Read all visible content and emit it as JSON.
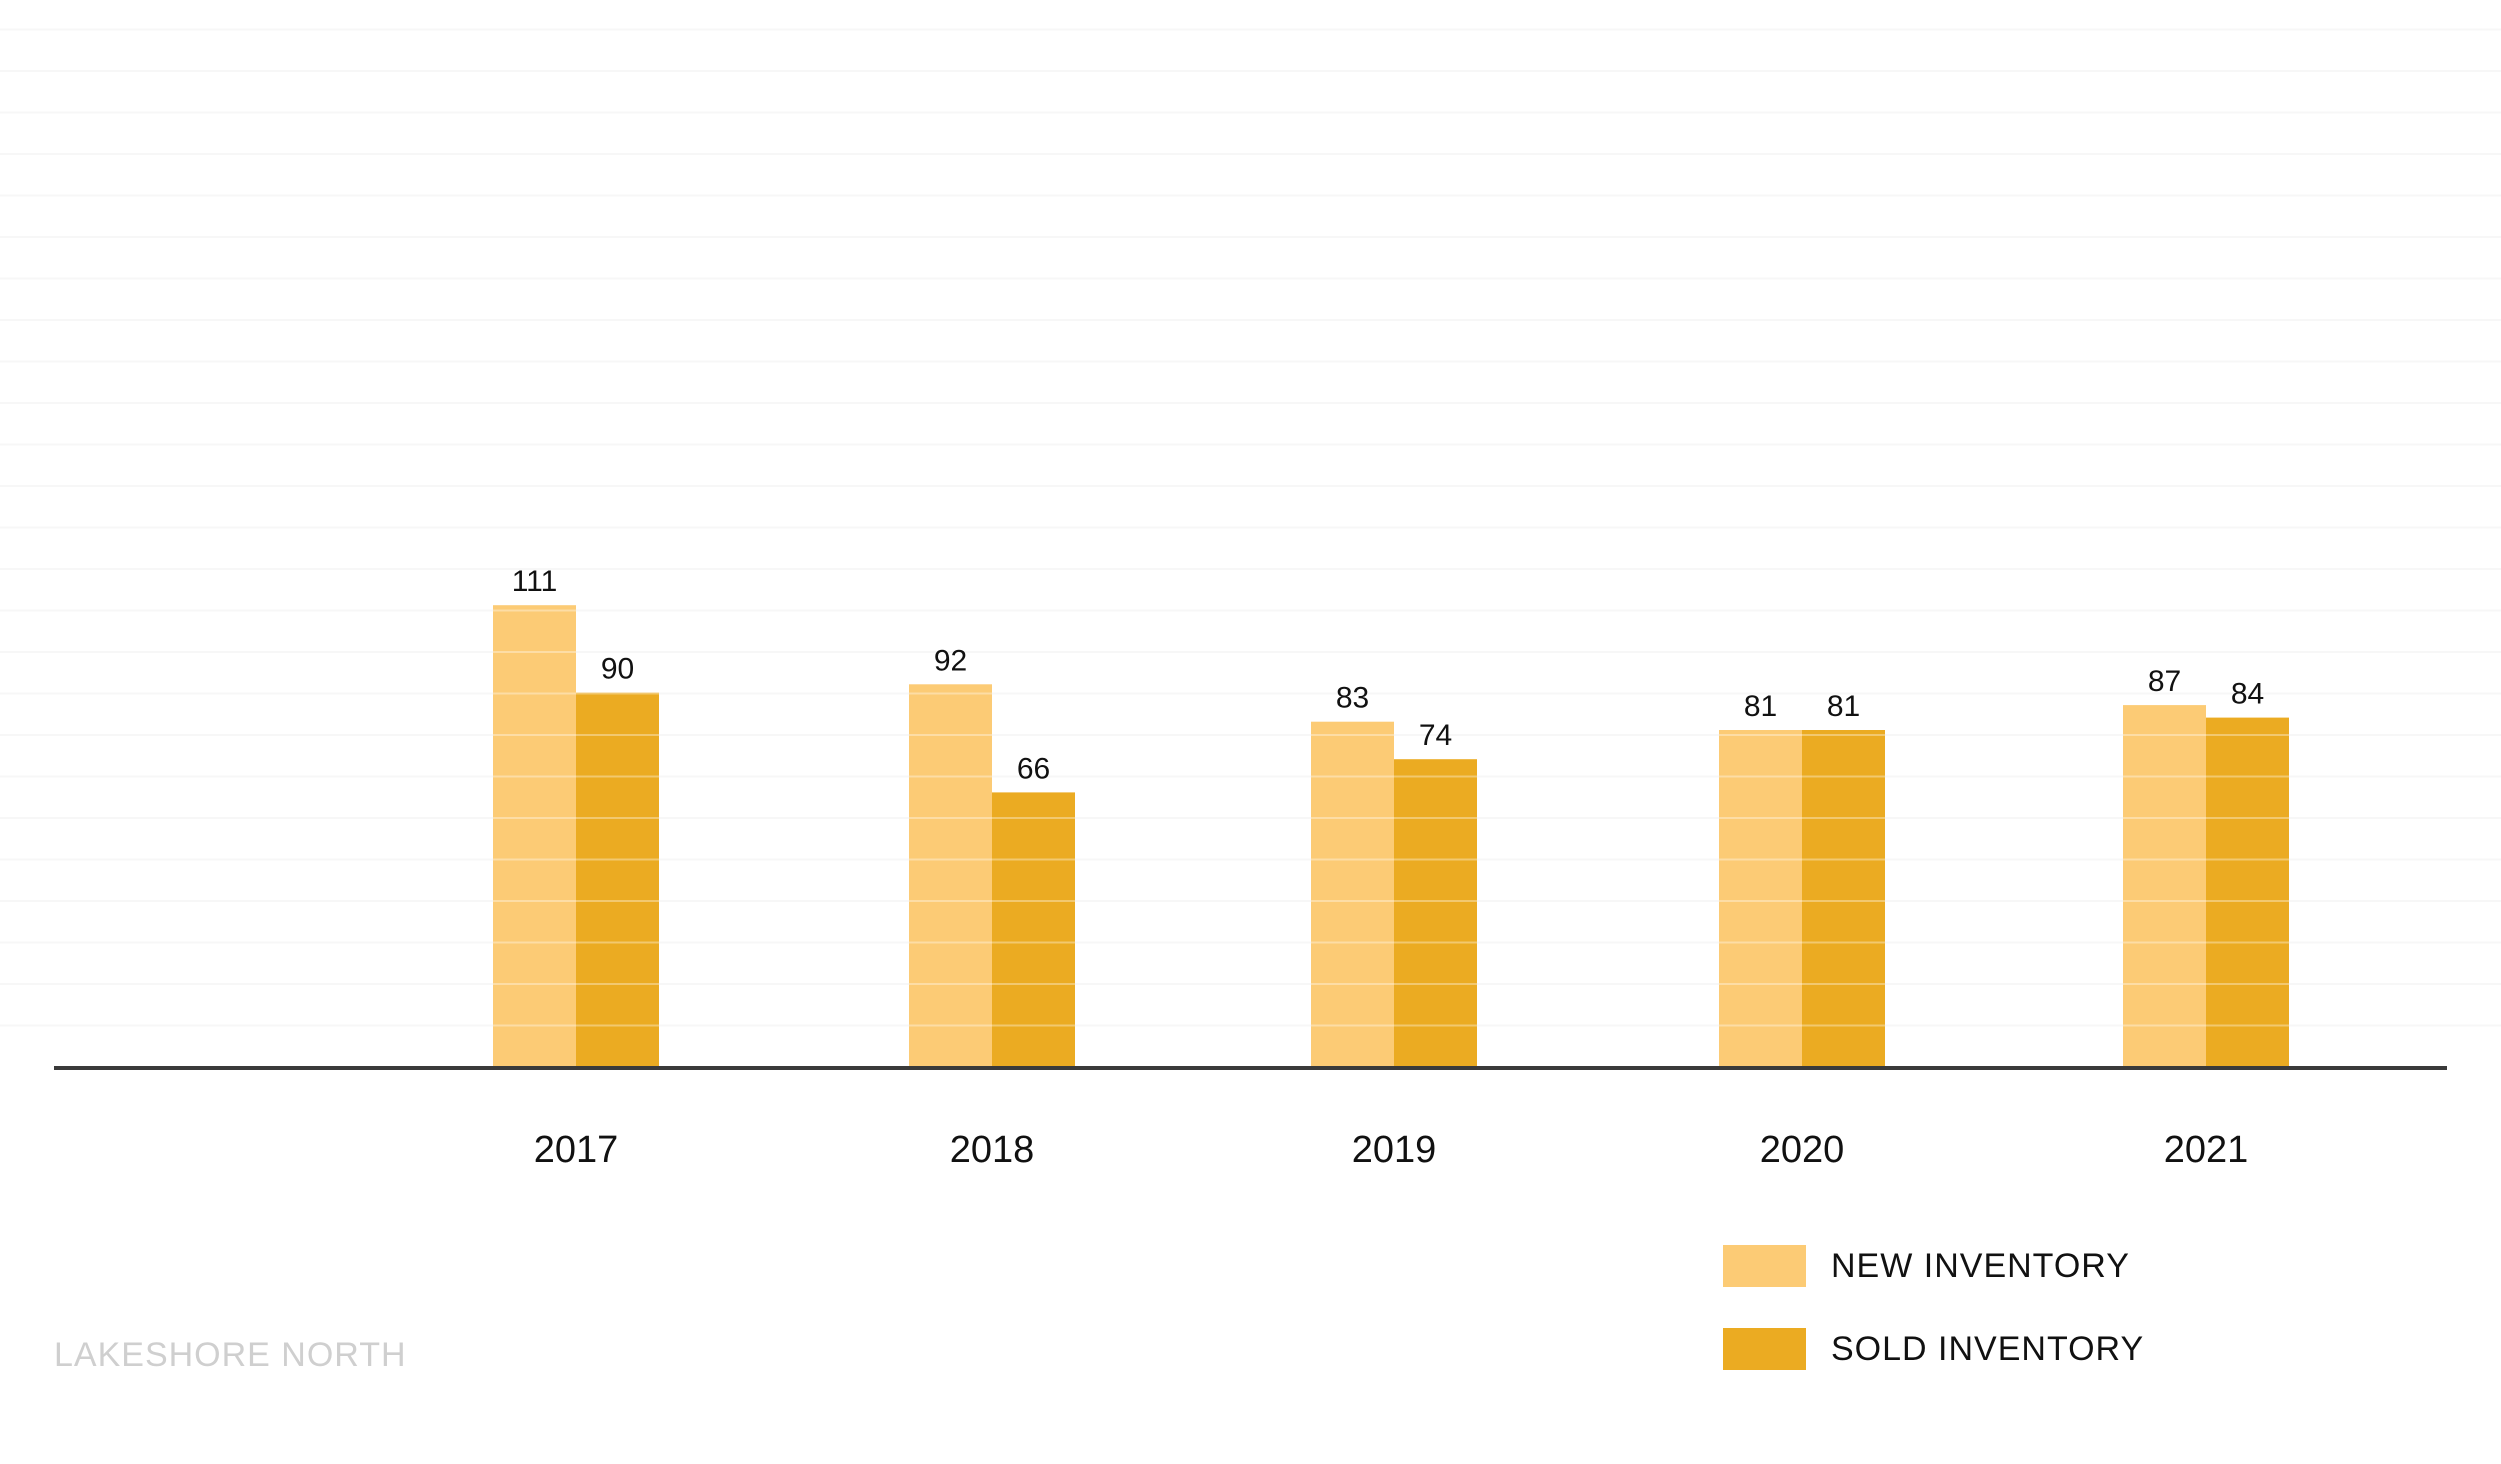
{
  "chart_data": {
    "type": "bar",
    "categories": [
      "2017",
      "2018",
      "2019",
      "2020",
      "2021"
    ],
    "series": [
      {
        "name": "NEW INVENTORY",
        "values": [
          111,
          92,
          83,
          81,
          87
        ],
        "color": "#fccb75"
      },
      {
        "name": "SOLD INVENTORY",
        "values": [
          90,
          66,
          74,
          81,
          84
        ],
        "color": "#ebab22"
      }
    ],
    "ylim": [
      0,
      250
    ],
    "grid": true,
    "gridline_color": "#f3f3f3",
    "axis_color": "#3a3a3a",
    "legend_position": "bottom-right"
  },
  "footer": {
    "text": "LAKESHORE NORTH"
  }
}
